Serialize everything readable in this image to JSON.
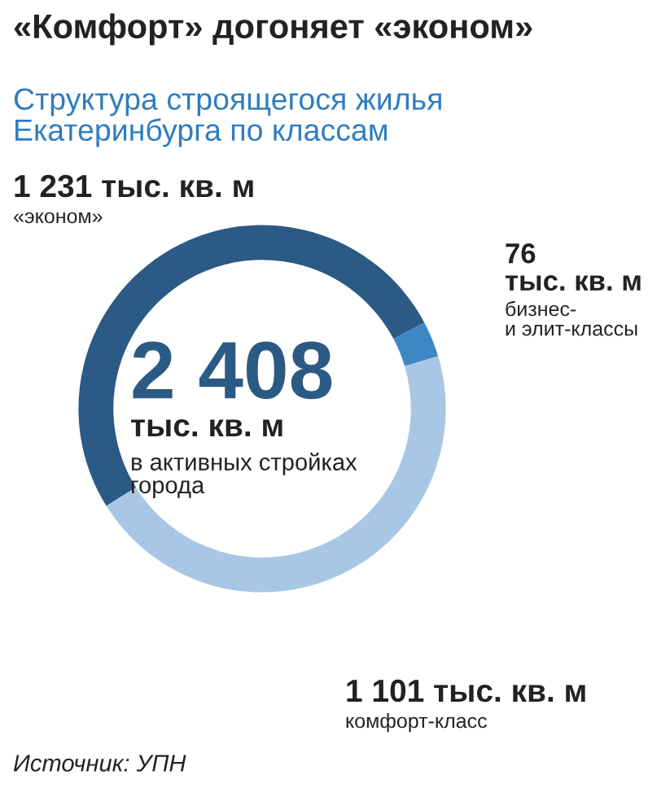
{
  "chart_data": {
    "type": "donut",
    "title": "«Комфорт» догоняет «эконом»",
    "subtitle": "Структура строящегося жилья\nЕкатеринбурга по классам",
    "categories": [
      "«эконом»",
      "бизнес-\nи элит-классы",
      "комфорт-класс"
    ],
    "values": [
      1231,
      76,
      1101
    ],
    "value_labels": [
      "1 231 тыс. кв. м",
      "76\nтыс. кв. м",
      "1 101 тыс. кв. м"
    ],
    "colors": [
      "#2b5a84",
      "#3d88c4",
      "#a8c7e6"
    ],
    "annotations": [
      "2 408",
      "тыс. кв. м",
      "в активных стройках\nгорода",
      "Источник: УПН"
    ],
    "legend": false
  }
}
